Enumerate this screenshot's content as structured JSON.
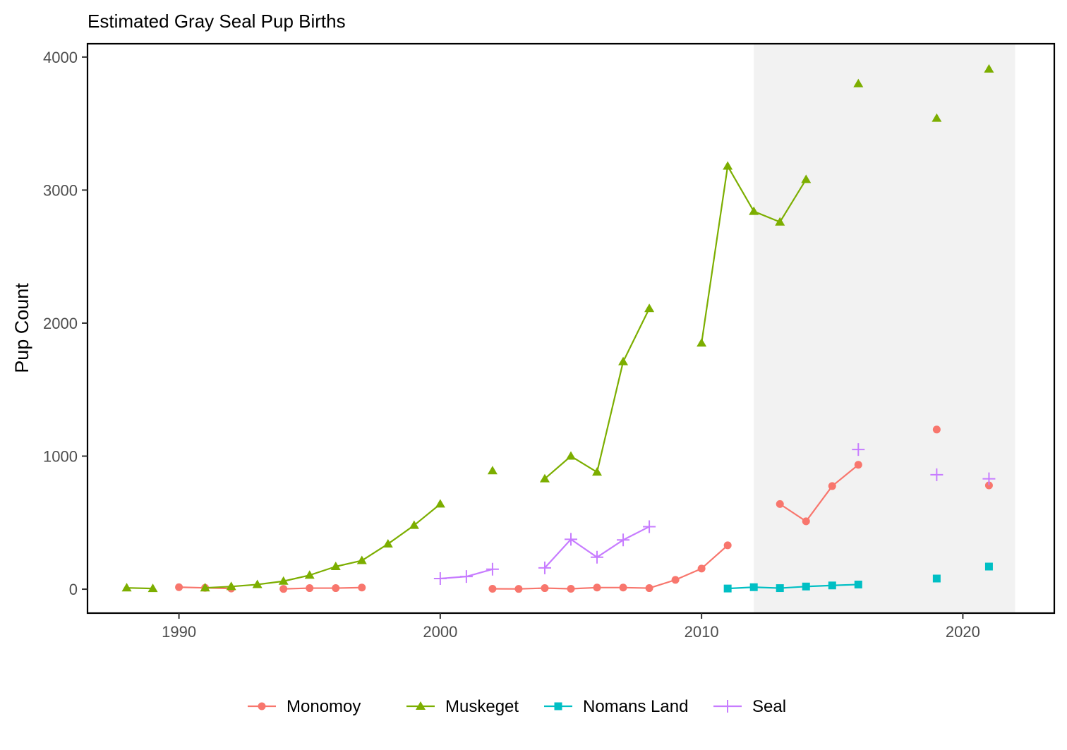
{
  "chart_data": {
    "type": "line",
    "title": "Estimated Gray Seal Pup Births",
    "xlabel": "",
    "ylabel": "Pup Count",
    "xlim": [
      1986.5,
      2023.5
    ],
    "ylim": [
      -180,
      4100
    ],
    "x_ticks": [
      1990,
      2000,
      2010,
      2020
    ],
    "y_ticks": [
      0,
      1000,
      2000,
      3000,
      4000
    ],
    "grid": false,
    "shaded_region": {
      "x_start": 2012,
      "x_end": 2022,
      "color": "#f2f2f2"
    },
    "legend_position": "bottom",
    "series": [
      {
        "name": "Monomoy",
        "color": "#F8766D",
        "marker": "circle",
        "points": [
          [
            1990,
            15
          ],
          [
            1991,
            10
          ],
          [
            1992,
            5
          ],
          [
            1994,
            2
          ],
          [
            1995,
            8
          ],
          [
            1996,
            8
          ],
          [
            1997,
            12
          ],
          [
            2002,
            3
          ],
          [
            2003,
            2
          ],
          [
            2004,
            8
          ],
          [
            2005,
            3
          ],
          [
            2006,
            12
          ],
          [
            2007,
            12
          ],
          [
            2008,
            8
          ],
          [
            2009,
            70
          ],
          [
            2010,
            155
          ],
          [
            2011,
            330
          ],
          [
            2013,
            640
          ],
          [
            2014,
            510
          ],
          [
            2015,
            775
          ],
          [
            2016,
            935
          ],
          [
            2019,
            1200
          ],
          [
            2021,
            780
          ]
        ]
      },
      {
        "name": "Muskeget",
        "color": "#7CAE00",
        "marker": "triangle",
        "points": [
          [
            1988,
            10
          ],
          [
            1989,
            5
          ],
          [
            1991,
            10
          ],
          [
            1992,
            20
          ],
          [
            1993,
            35
          ],
          [
            1994,
            60
          ],
          [
            1995,
            105
          ],
          [
            1996,
            170
          ],
          [
            1997,
            215
          ],
          [
            1998,
            340
          ],
          [
            1999,
            480
          ],
          [
            2000,
            640
          ],
          [
            2002,
            890
          ],
          [
            2004,
            830
          ],
          [
            2005,
            1000
          ],
          [
            2006,
            880
          ],
          [
            2007,
            1710
          ],
          [
            2008,
            2110
          ],
          [
            2010,
            1850
          ],
          [
            2011,
            3180
          ],
          [
            2012,
            2840
          ],
          [
            2013,
            2760
          ],
          [
            2014,
            3080
          ],
          [
            2016,
            3800
          ],
          [
            2019,
            3540
          ],
          [
            2021,
            3910
          ]
        ]
      },
      {
        "name": "Nomans Land",
        "color": "#00BFC4",
        "marker": "square",
        "points": [
          [
            2011,
            5
          ],
          [
            2012,
            15
          ],
          [
            2013,
            8
          ],
          [
            2014,
            20
          ],
          [
            2015,
            28
          ],
          [
            2016,
            35
          ],
          [
            2019,
            80
          ],
          [
            2021,
            170
          ]
        ]
      },
      {
        "name": "Seal",
        "color": "#C77CFF",
        "marker": "plus",
        "points": [
          [
            2000,
            80
          ],
          [
            2001,
            95
          ],
          [
            2002,
            150
          ],
          [
            2004,
            160
          ],
          [
            2005,
            375
          ],
          [
            2006,
            240
          ],
          [
            2007,
            370
          ],
          [
            2008,
            470
          ],
          [
            2016,
            1050
          ],
          [
            2019,
            860
          ],
          [
            2021,
            830
          ]
        ]
      }
    ]
  }
}
